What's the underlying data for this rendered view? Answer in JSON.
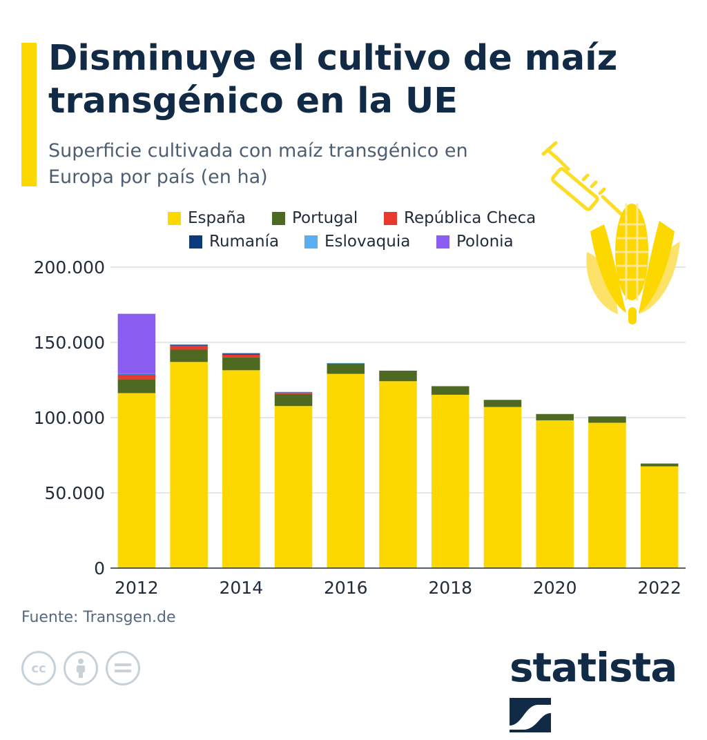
{
  "header": {
    "title": "Disminuye el cultivo de maíz transgénico en la UE",
    "subtitle": "Superficie cultivada con maíz transgénico en Europa por país (en ha)"
  },
  "footer": {
    "source": "Fuente: Transgen.de",
    "license_icons": [
      "cc-icon",
      "attribution-icon",
      "no-derivatives-icon"
    ],
    "brand": "statista"
  },
  "colors": {
    "accent": "#fdd700",
    "title": "#112a46",
    "grid": "#c8cfd6"
  },
  "chart_data": {
    "type": "bar",
    "stacked": true,
    "title": "Disminuye el cultivo de maíz transgénico en la UE",
    "subtitle": "Superficie cultivada con maíz transgénico en Europa por país (en ha)",
    "categories": [
      "2012",
      "2013",
      "2014",
      "2015",
      "2016",
      "2017",
      "2018",
      "2019",
      "2020",
      "2021",
      "2022"
    ],
    "x_tick_labels": [
      "2012",
      "2014",
      "2016",
      "2018",
      "2020",
      "2022"
    ],
    "y_ticks": [
      "0",
      "50.000",
      "100.000",
      "150.000",
      "200.000"
    ],
    "y_tick_values": [
      0,
      50000,
      100000,
      150000,
      200000
    ],
    "ylim": [
      0,
      200000
    ],
    "grid": true,
    "legend_position": "top",
    "series": [
      {
        "name": "España",
        "color": "#fdd700",
        "values": [
          116300,
          137000,
          131500,
          107700,
          129100,
          124200,
          115200,
          107100,
          98200,
          96600,
          67600
        ]
      },
      {
        "name": "Portugal",
        "color": "#4e6a22",
        "values": [
          9300,
          8200,
          8500,
          8000,
          7100,
          7000,
          5700,
          4700,
          4200,
          4200,
          1900
        ]
      },
      {
        "name": "República Checa",
        "color": "#e8392f",
        "values": [
          3000,
          2600,
          1800,
          1000,
          0,
          0,
          0,
          0,
          0,
          0,
          0
        ]
      },
      {
        "name": "Rumanía",
        "color": "#0d3a7a",
        "values": [
          200,
          800,
          800,
          300,
          0,
          0,
          0,
          0,
          0,
          0,
          0
        ]
      },
      {
        "name": "Eslovaquia",
        "color": "#5aaef0",
        "values": [
          200,
          100,
          400,
          100,
          100,
          0,
          0,
          0,
          0,
          0,
          0
        ]
      },
      {
        "name": "Polonia",
        "color": "#8a5cf0",
        "values": [
          40000,
          0,
          0,
          0,
          0,
          0,
          0,
          0,
          0,
          0,
          0
        ]
      }
    ]
  }
}
